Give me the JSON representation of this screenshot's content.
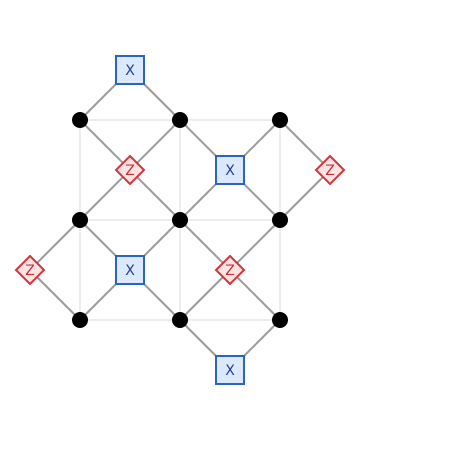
{
  "labels": {
    "x_stabilizer": "X",
    "z_stabilizer": "Z"
  },
  "colors": {
    "x_fill": "#dce8fb",
    "x_stroke": "#2a64c2",
    "x_text": "#1f3f99",
    "z_fill": "#fde3e3",
    "z_stroke": "#d0363b",
    "z_text": "#c83035",
    "data_qubit": "#000000",
    "edge": "#9a9a9a",
    "lattice": "#e6e6e6"
  }
}
